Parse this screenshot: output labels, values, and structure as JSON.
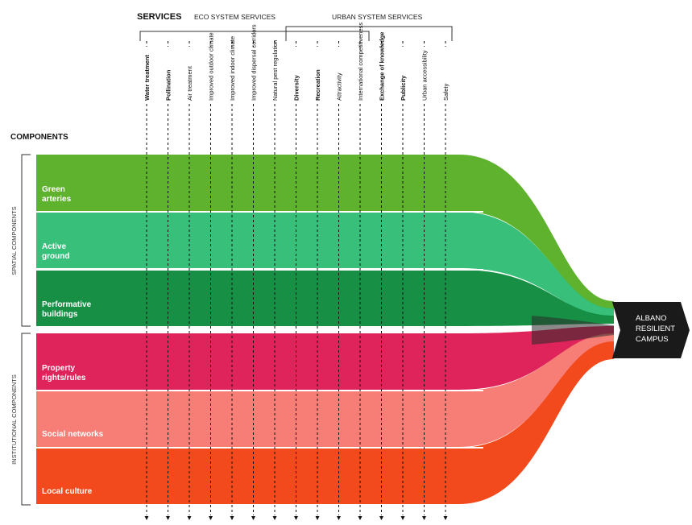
{
  "header": {
    "services": "SERVICES",
    "eco_group": "ECO SYSTEM SERVICES",
    "urban_group": "URBAN SYSTEM SERVICES",
    "components": "COMPONENTS"
  },
  "side_labels": {
    "spatial": "SPATIAL COMPONENTS",
    "institutional": "INSTITUTIONAL COMPONENTS"
  },
  "services": [
    {
      "label": "Water treatment",
      "bold": true
    },
    {
      "label": "Pollination",
      "bold": true
    },
    {
      "label": "Air treatment",
      "bold": false
    },
    {
      "label": "Improved outdoor climate",
      "bold": false
    },
    {
      "label": "Improved indoor climate",
      "bold": false
    },
    {
      "label": "Improved dispersal corridors",
      "bold": false
    },
    {
      "label": "Natural pest regulation",
      "bold": false
    },
    {
      "label": "Diversity",
      "bold": true
    },
    {
      "label": "Recreation",
      "bold": true
    },
    {
      "label": "Attractivity",
      "bold": false
    },
    {
      "label": "International competitiveness",
      "bold": false
    },
    {
      "label": "Exchange of knowledge",
      "bold": true
    },
    {
      "label": "Publicity",
      "bold": true
    },
    {
      "label": "Urban accessibility",
      "bold": false
    },
    {
      "label": "Safety",
      "bold": false
    }
  ],
  "components": [
    {
      "line1": "Green",
      "line2": "arteries",
      "color": "#5fb22e"
    },
    {
      "line1": "Active",
      "line2": "ground",
      "color": "#2dbd74"
    },
    {
      "line1": "Performative",
      "line2": "buildings",
      "color": "#0b8a3c"
    },
    {
      "line1": "Property",
      "line2": "rights/rules",
      "color": "#dc1851"
    },
    {
      "line1": "Social networks",
      "line2": "",
      "color": "#f57770"
    },
    {
      "line1": "Local culture",
      "line2": "",
      "color": "#f24a1c"
    }
  ],
  "target": {
    "line1": "ALBANO",
    "line2": "RESILIENT",
    "line3": "CAMPUS",
    "color": "#1a1a1a"
  }
}
